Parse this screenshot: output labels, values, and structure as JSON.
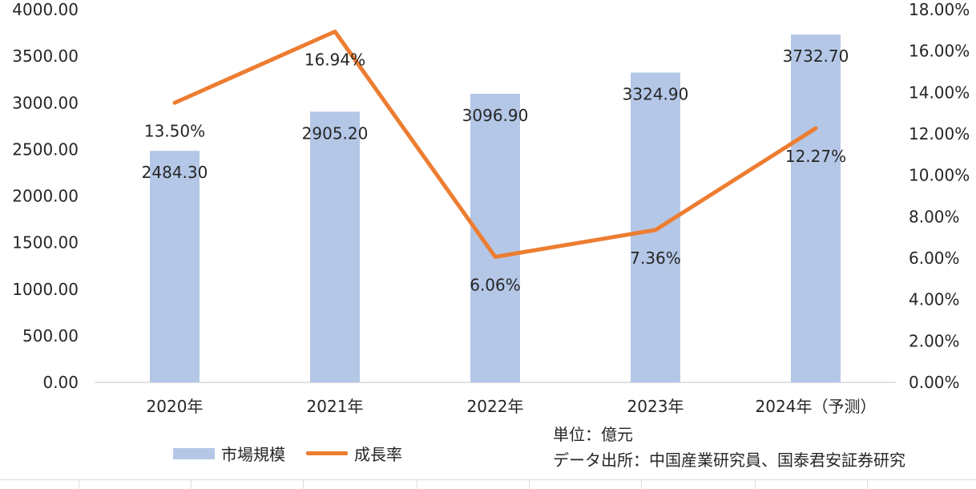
{
  "chart_data": {
    "type": "bar",
    "categories": [
      "2020年",
      "2021年",
      "2022年",
      "2023年",
      "2024年（予测）"
    ],
    "series": [
      {
        "name": "市場規模",
        "type": "bar",
        "axis": "left",
        "values": [
          2484.3,
          2905.2,
          3096.9,
          3324.9,
          3732.7
        ],
        "labels": [
          "2484.30",
          "2905.20",
          "3096.90",
          "3324.90",
          "3732.70"
        ],
        "color": "#b4c7e7"
      },
      {
        "name": "成長率",
        "type": "line",
        "axis": "right",
        "values": [
          13.5,
          16.94,
          6.06,
          7.36,
          12.27
        ],
        "labels": [
          "13.50%",
          "16.94%",
          "6.06%",
          "7.36%",
          "12.27%"
        ],
        "color": "#ed7d31"
      }
    ],
    "y_left": {
      "min": 0,
      "max": 4000,
      "step": 500,
      "ticks": [
        "0.00",
        "500.00",
        "1000.00",
        "1500.00",
        "2000.00",
        "2500.00",
        "3000.00",
        "3500.00",
        "4000.00"
      ]
    },
    "y_right": {
      "min": 0,
      "max": 18,
      "step": 2,
      "ticks": [
        "0.00%",
        "2.00%",
        "4.00%",
        "6.00%",
        "8.00%",
        "10.00%",
        "12.00%",
        "14.00%",
        "16.00%",
        "18.00%"
      ]
    },
    "grid": false,
    "legend_position": "bottom-left"
  },
  "legend": {
    "bar_label": "市場規模",
    "line_label": "成長率"
  },
  "notes": {
    "unit": "単位：億元",
    "source": "データ出所：中国産業研究員、国泰君安証券研究"
  }
}
